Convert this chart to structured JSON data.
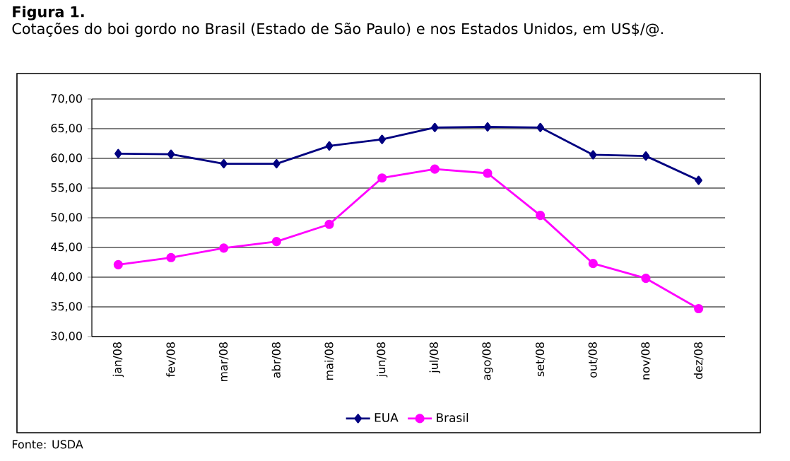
{
  "chart_data": {
    "type": "line",
    "title": "Figura 1.",
    "subtitle": "Cotações do boi gordo no Brasil (Estado de São Paulo) e nos Estados Unidos, em US$/@.",
    "categories": [
      "jan/08",
      "fev/08",
      "mar/08",
      "abr/08",
      "mai/08",
      "jun/08",
      "jul/08",
      "ago/08",
      "set/08",
      "out/08",
      "nov/08",
      "dez/08"
    ],
    "series": [
      {
        "name": "EUA",
        "color": "#000080",
        "marker": "diamond",
        "values": [
          60.8,
          60.7,
          59.1,
          59.1,
          62.1,
          63.2,
          65.2,
          65.3,
          65.2,
          60.6,
          60.4,
          56.3
        ]
      },
      {
        "name": "Brasil",
        "color": "#ff00ff",
        "marker": "circle",
        "values": [
          42.1,
          43.3,
          44.9,
          46.0,
          48.9,
          56.7,
          58.2,
          57.5,
          50.4,
          42.3,
          39.8,
          34.7
        ]
      }
    ],
    "ylim": [
      30,
      70
    ],
    "yticks": [
      {
        "value": 30,
        "label": "30,00"
      },
      {
        "value": 35,
        "label": "35,00"
      },
      {
        "value": 40,
        "label": "40,00"
      },
      {
        "value": 45,
        "label": "45,00"
      },
      {
        "value": 50,
        "label": "50,00"
      },
      {
        "value": 55,
        "label": "55,00"
      },
      {
        "value": 60,
        "label": "60,00"
      },
      {
        "value": 65,
        "label": "65,00"
      },
      {
        "value": 70,
        "label": "70,00"
      }
    ],
    "grid": "y",
    "legend": "bottom",
    "line_style": "solid",
    "annotations": [
      "Fonte: USDA"
    ]
  }
}
